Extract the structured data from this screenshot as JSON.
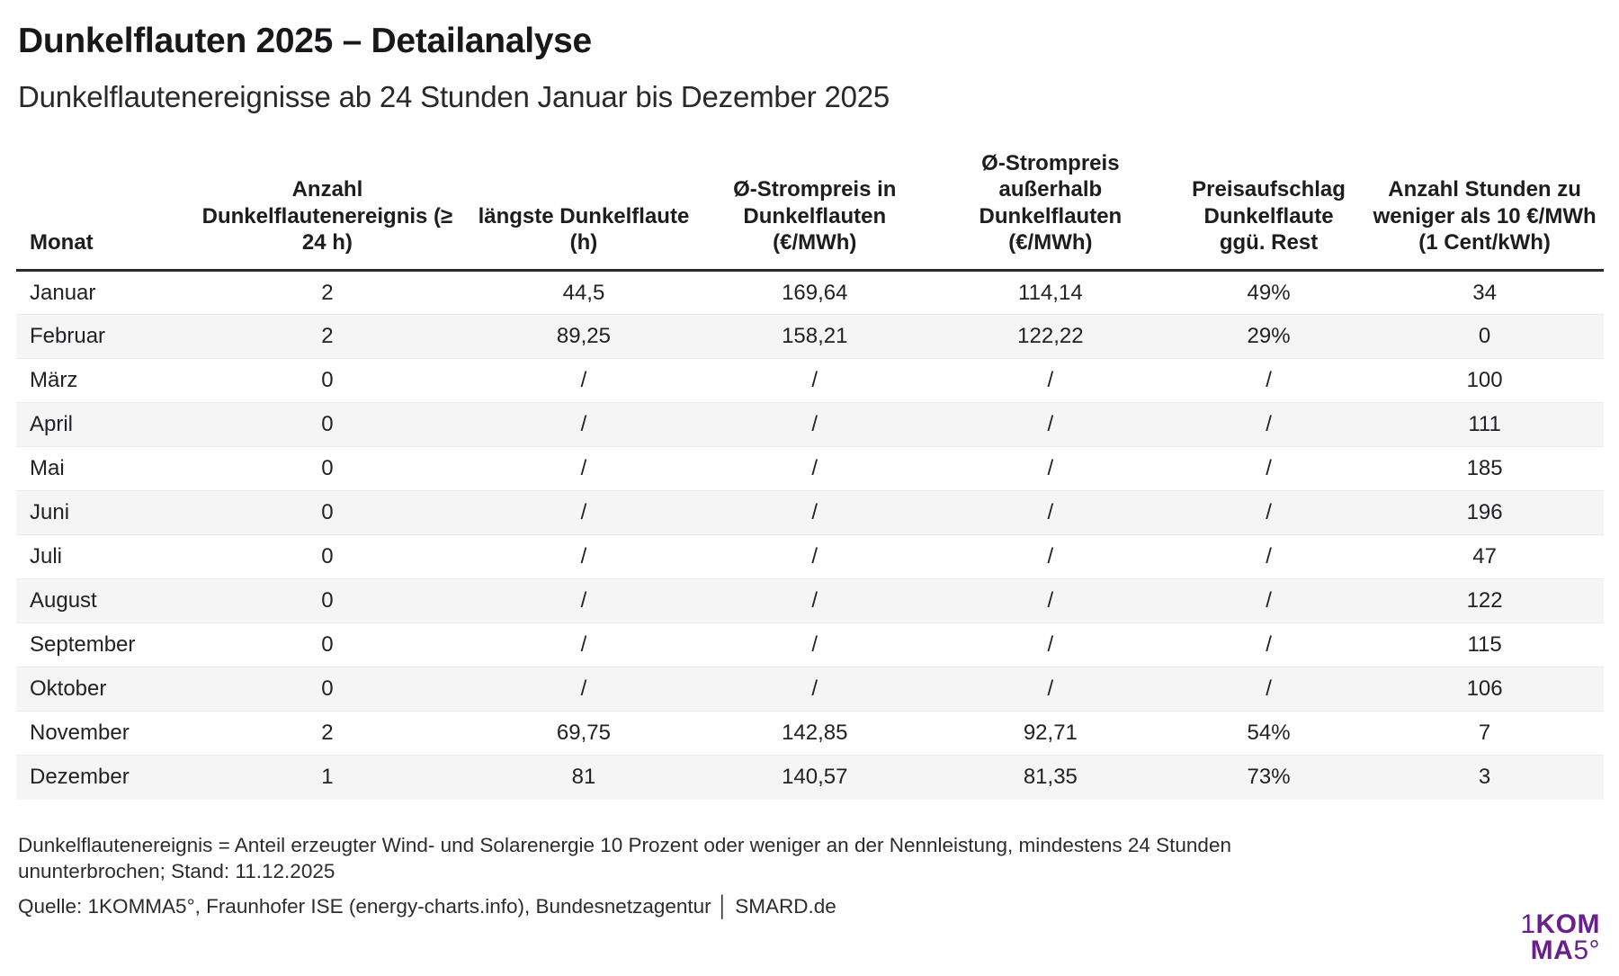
{
  "title": "Dunkelflauten 2025 – Detailanalyse",
  "subtitle": "Dunkelflautenereignisse ab 24 Stunden Januar bis Dezember 2025",
  "chart_data": {
    "type": "table",
    "columns": [
      "Monat",
      "Anzahl Dunkelflautenereignis (≥ 24 h)",
      "längste Dunkelflaute (h)",
      "Ø-Strompreis in Dunkelflauten (€/MWh)",
      "Ø-Strompreis außerhalb Dunkelflauten (€/MWh)",
      "Preisaufschlag Dunkelflaute ggü. Rest",
      "Anzahl Stunden zu weniger als 10 €/MWh (1 Cent/kWh)"
    ],
    "rows": [
      [
        "Januar",
        "2",
        "44,5",
        "169,64",
        "114,14",
        "49%",
        "34"
      ],
      [
        "Februar",
        "2",
        "89,25",
        "158,21",
        "122,22",
        "29%",
        "0"
      ],
      [
        "März",
        "0",
        "/",
        "/",
        "/",
        "/",
        "100"
      ],
      [
        "April",
        "0",
        "/",
        "/",
        "/",
        "/",
        "111"
      ],
      [
        "Mai",
        "0",
        "/",
        "/",
        "/",
        "/",
        "185"
      ],
      [
        "Juni",
        "0",
        "/",
        "/",
        "/",
        "/",
        "196"
      ],
      [
        "Juli",
        "0",
        "/",
        "/",
        "/",
        "/",
        "47"
      ],
      [
        "August",
        "0",
        "/",
        "/",
        "/",
        "/",
        "122"
      ],
      [
        "September",
        "0",
        "/",
        "/",
        "/",
        "/",
        "115"
      ],
      [
        "Oktober",
        "0",
        "/",
        "/",
        "/",
        "/",
        "106"
      ],
      [
        "November",
        "2",
        "69,75",
        "142,85",
        "92,71",
        "54%",
        "7"
      ],
      [
        "Dezember",
        "1",
        "81",
        "140,57",
        "81,35",
        "73%",
        "3"
      ]
    ]
  },
  "footer": {
    "note_lines": [
      "Dunkelflautenereignis = Anteil erzeugter Wind- und Solarenergie 10 Prozent oder weniger an der Nennleistung, mindestens 24 Stunden",
      "ununterbrochen; Stand: 11.12.2025"
    ],
    "source": "Quelle: 1KOMMA5°, Fraunhofer ISE (energy-charts.info), Bundesnetzagentur │ SMARD.de"
  },
  "logo": {
    "line1_thin": "1",
    "line1_bold": "KOM",
    "line2_bold": "MA",
    "line2_thin": "5°"
  },
  "colors": {
    "accent_purple": "#691f8c",
    "zebra_stripe": "#f5f5f5",
    "header_rule": "#2b2b2e",
    "text": "#202024"
  }
}
